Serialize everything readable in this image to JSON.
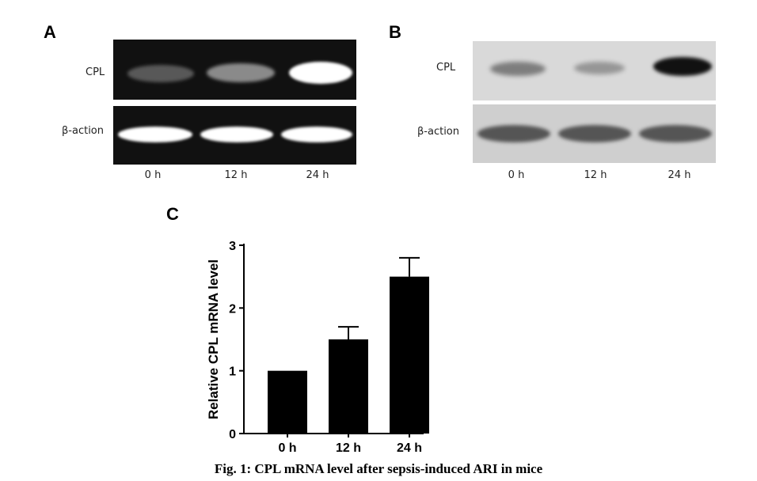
{
  "panels": {
    "a": {
      "letter": "A",
      "top_label": "CPL",
      "bottom_label": "β-action",
      "lanes": [
        "0 h",
        "12 h",
        "24 h"
      ],
      "cpl_band_intensity": [
        0.35,
        0.55,
        1.0
      ]
    },
    "b": {
      "letter": "B",
      "top_label": "CPL",
      "bottom_label": "β-action",
      "lanes": [
        "0 h",
        "12 h",
        "24 h"
      ],
      "cpl_band_intensity": [
        0.55,
        0.4,
        1.0
      ]
    },
    "c": {
      "letter": "C"
    }
  },
  "chart_data": {
    "type": "bar",
    "categories": [
      "0 h",
      "12 h",
      "24 h"
    ],
    "values": [
      1.0,
      1.5,
      2.5
    ],
    "error": [
      0,
      0.2,
      0.3
    ],
    "ylabel": "Relative CPL mRNA level",
    "xlabel": "",
    "ylim": [
      0,
      3
    ],
    "yticks": [
      0,
      1,
      2,
      3
    ],
    "bar_color": "#000000",
    "grid": false
  },
  "caption": "Fig. 1: CPL mRNA level after sepsis-induced ARI in mice"
}
